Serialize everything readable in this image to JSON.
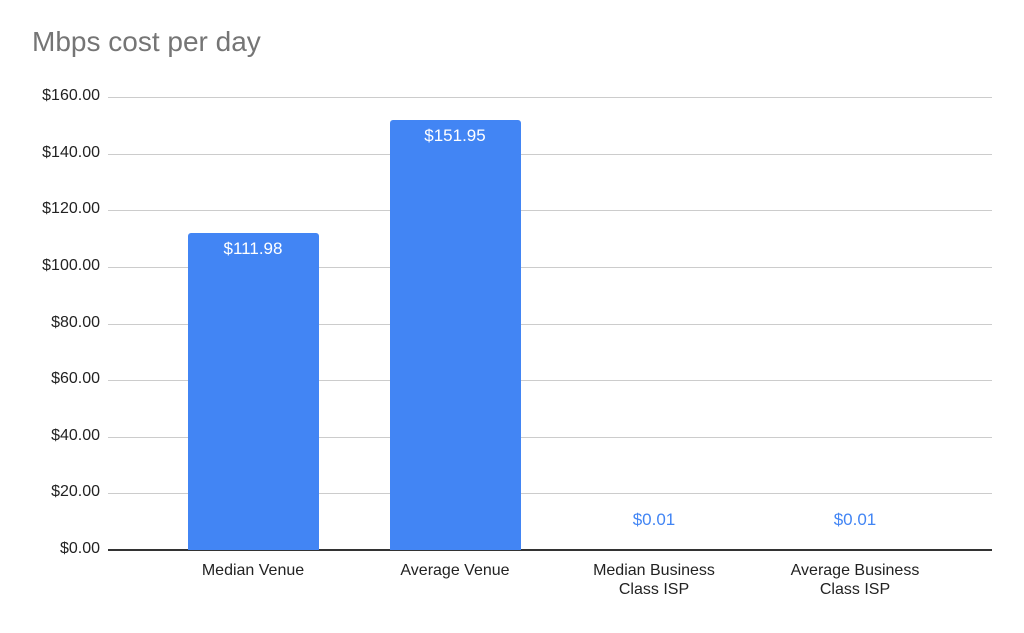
{
  "chart_data": {
    "type": "bar",
    "title": "Mbps cost per day",
    "xlabel": "",
    "ylabel": "",
    "categories": [
      "Median Venue",
      "Average Venue",
      "Median Business Class ISP",
      "Average Business Class ISP"
    ],
    "category_lines": [
      [
        "Median Venue"
      ],
      [
        "Average Venue"
      ],
      [
        "Median Business",
        "Class ISP"
      ],
      [
        "Average Business",
        "Class ISP"
      ]
    ],
    "values": [
      111.98,
      151.95,
      0.01,
      0.01
    ],
    "data_labels": [
      "$111.98",
      "$151.95",
      "$0.01",
      "$0.01"
    ],
    "ylim": [
      0,
      160
    ],
    "yticks": [
      0,
      20,
      40,
      60,
      80,
      100,
      120,
      140,
      160
    ],
    "ytick_labels": [
      "$0.00",
      "$20.00",
      "$40.00",
      "$60.00",
      "$80.00",
      "$100.00",
      "$120.00",
      "$140.00",
      "$160.00"
    ],
    "grid": true,
    "legend": "none",
    "colors": {
      "bar": "#4285f4",
      "title": "#757575",
      "grid": "#cccccc",
      "axis": "#333333"
    }
  }
}
